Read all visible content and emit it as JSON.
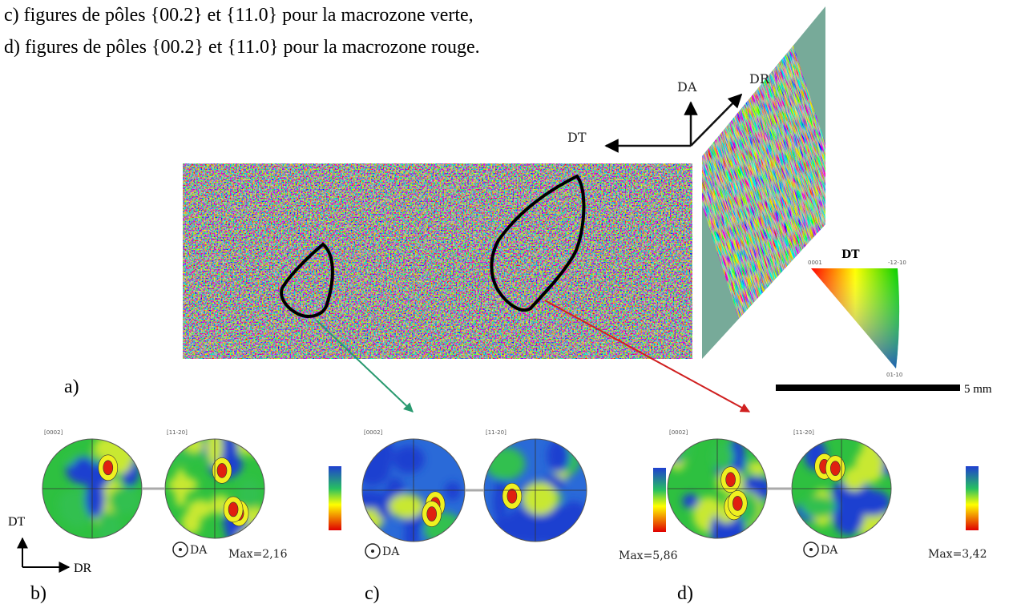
{
  "caption": {
    "lines": [
      "c) figures de pôles {00.2} et {11.0} pour la macrozone verte,",
      "d) figures de pôles {00.2} et {11.0} pour la macrozone rouge."
    ]
  },
  "axes_3d": {
    "da": "DA",
    "dr": "DR",
    "dt": "DT"
  },
  "ipf_legend": {
    "title": "DT",
    "corner_0001": "0001",
    "corner_1210": "-12-10",
    "corner_0110": "01-10"
  },
  "scale_bar": "5 mm",
  "panels": {
    "a": {
      "label": "a)"
    },
    "b": {
      "label": "b)",
      "pole_labels": [
        "[0002]",
        "[11-20]"
      ],
      "normal": "DA",
      "max": "Max=2,16"
    },
    "c": {
      "label": "c)",
      "pole_labels": [
        "[0002]",
        "[11-20]"
      ],
      "normal": "DA",
      "max": "Max=5,86"
    },
    "d": {
      "label": "d)",
      "pole_labels": [
        "[0002]",
        "[11-20]"
      ],
      "normal": "DA",
      "max": "Max=3,42"
    }
  },
  "sample_axes": {
    "vertical": "DT",
    "horizontal": "DR"
  }
}
